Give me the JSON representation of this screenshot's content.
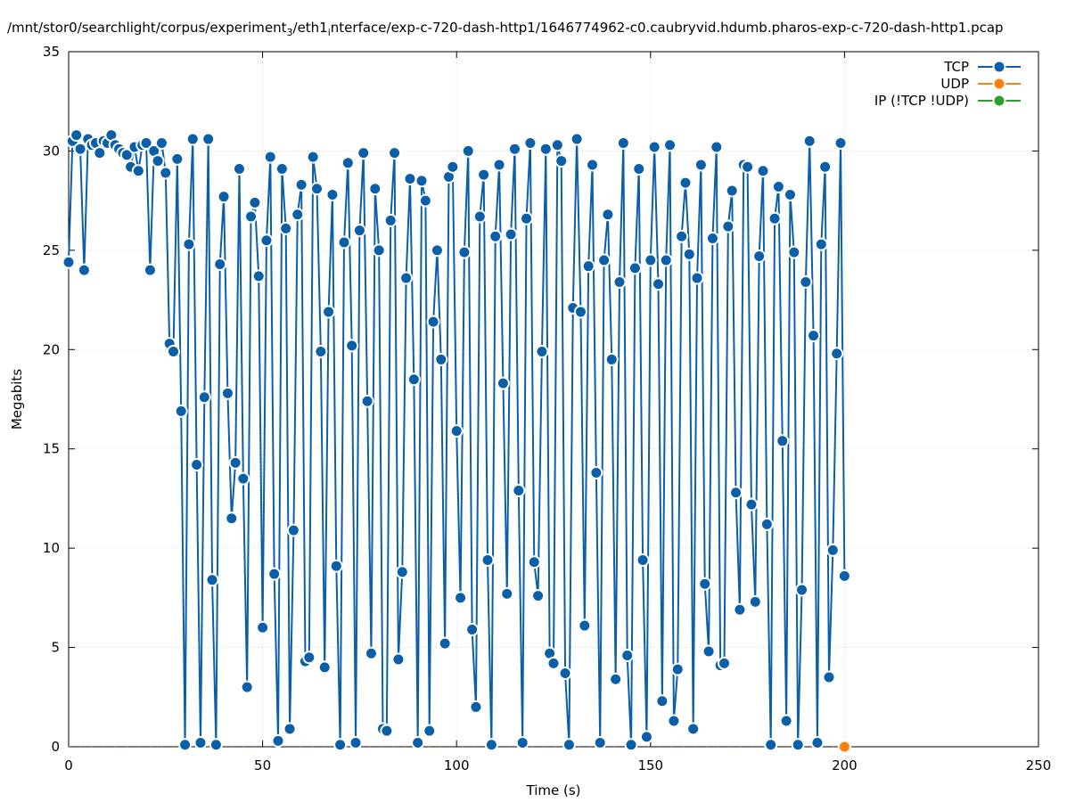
{
  "chart_data": {
    "type": "line",
    "title": "/mnt/stor0/searchlight/corpus/experiment_3/eth1_interface/exp-c-720-dash-http1/1646774962-c0.caubryvid.hdumb.pharos-exp-c-720-dash-http1.pcap",
    "title_parts": {
      "p1": "/mnt/stor0/searchlight/corpus/experiment",
      "sub1": "3",
      "p2": "/eth1",
      "sub2": "i",
      "p3": "nterface/exp-c-720-dash-http1/1646774962-c0.caubryvid.hdumb.pharos-exp-c-720-dash-http1.pcap"
    },
    "xlabel": "Time (s)",
    "ylabel": "Megabits",
    "xlim": [
      0,
      250
    ],
    "ylim": [
      0,
      35
    ],
    "xticks": [
      0,
      50,
      100,
      150,
      200,
      250
    ],
    "yticks": [
      0,
      5,
      10,
      15,
      20,
      25,
      30,
      35
    ],
    "grid": true,
    "legend_position": "top-right",
    "series": [
      {
        "name": "TCP",
        "color": "#0a5fa8",
        "x": [
          0,
          1,
          2,
          3,
          4,
          5,
          6,
          7,
          8,
          9,
          10,
          11,
          12,
          13,
          14,
          15,
          16,
          17,
          18,
          19,
          20,
          21,
          22,
          23,
          24,
          25,
          26,
          27,
          28,
          29,
          30,
          31,
          32,
          33,
          34,
          35,
          36,
          37,
          38,
          39,
          40,
          41,
          42,
          43,
          44,
          45,
          46,
          47,
          48,
          49,
          50,
          51,
          52,
          53,
          54,
          55,
          56,
          57,
          58,
          59,
          60,
          61,
          62,
          63,
          64,
          65,
          66,
          67,
          68,
          69,
          70,
          71,
          72,
          73,
          74,
          75,
          76,
          77,
          78,
          79,
          80,
          81,
          82,
          83,
          84,
          85,
          86,
          87,
          88,
          89,
          90,
          91,
          92,
          93,
          94,
          95,
          96,
          97,
          98,
          99,
          100,
          101,
          102,
          103,
          104,
          105,
          106,
          107,
          108,
          109,
          110,
          111,
          112,
          113,
          114,
          115,
          116,
          117,
          118,
          119,
          120,
          121,
          122,
          123,
          124,
          125,
          126,
          127,
          128,
          129,
          130,
          131,
          132,
          133,
          134,
          135,
          136,
          137,
          138,
          139,
          140,
          141,
          142,
          143,
          144,
          145,
          146,
          147,
          148,
          149,
          150,
          151,
          152,
          153,
          154,
          155,
          156,
          157,
          158,
          159,
          160,
          161,
          162,
          163,
          164,
          165,
          166,
          167,
          168,
          169,
          170,
          171,
          172,
          173,
          174,
          175,
          176,
          177,
          178,
          179,
          180,
          181,
          182,
          183,
          184,
          185,
          186,
          187,
          188,
          189,
          190,
          191,
          192,
          193,
          194,
          195,
          196,
          197,
          198,
          199,
          200
        ],
        "y": [
          24.4,
          30.5,
          30.8,
          30.1,
          24.0,
          30.6,
          30.3,
          30.4,
          29.9,
          30.5,
          30.4,
          30.8,
          30.3,
          30.1,
          29.9,
          29.8,
          29.2,
          30.2,
          29.0,
          30.3,
          30.4,
          24.0,
          30.0,
          29.5,
          30.4,
          28.9,
          20.3,
          19.9,
          29.6,
          16.9,
          0.1,
          25.3,
          30.6,
          14.2,
          0.2,
          17.6,
          30.6,
          8.4,
          0.1,
          24.3,
          27.7,
          17.8,
          11.5,
          14.3,
          29.1,
          13.5,
          3.0,
          26.7,
          27.4,
          23.7,
          6.0,
          25.5,
          29.7,
          8.7,
          0.3,
          29.1,
          26.1,
          0.9,
          10.9,
          26.8,
          28.3,
          4.3,
          4.5,
          29.7,
          28.1,
          19.9,
          4.0,
          21.9,
          27.8,
          9.1,
          0.1,
          25.4,
          29.4,
          20.2,
          0.2,
          26.0,
          29.9,
          17.4,
          4.7,
          28.1,
          25.0,
          0.9,
          0.8,
          26.5,
          29.9,
          4.4,
          8.8,
          23.6,
          28.6,
          18.5,
          0.2,
          28.5,
          27.5,
          0.8,
          21.4,
          25.0,
          19.5,
          5.2,
          28.7,
          29.2,
          15.9,
          7.5,
          24.9,
          30.0,
          5.9,
          2.0,
          26.7,
          28.8,
          9.4,
          0.1,
          25.7,
          29.3,
          18.3,
          7.7,
          25.8,
          30.1,
          12.9,
          0.2,
          26.6,
          30.4,
          9.3,
          7.6,
          19.9,
          30.1,
          4.7,
          4.2,
          30.3,
          29.5,
          3.7,
          0.1,
          22.1,
          30.6,
          21.9,
          6.1,
          24.2,
          29.3,
          13.8,
          0.2,
          24.5,
          26.8,
          19.5,
          3.4,
          23.4,
          30.4,
          4.6,
          0.1,
          24.1,
          29.1,
          9.4,
          0.5,
          24.5,
          30.2,
          23.3,
          2.3,
          24.5,
          30.3,
          1.3,
          3.9,
          25.7,
          28.4,
          24.8,
          0.9,
          23.6,
          29.3,
          8.2,
          4.8,
          25.6,
          30.2,
          4.1,
          4.2,
          26.2,
          28.0,
          12.8,
          6.9,
          29.3,
          29.2,
          12.2,
          7.3,
          24.7,
          29.0,
          11.2,
          0.1,
          26.6,
          28.2,
          15.4,
          1.3,
          27.8,
          24.9,
          0.1,
          7.9,
          23.4,
          30.5,
          20.7,
          0.2,
          25.3,
          29.2,
          3.5,
          9.9,
          19.8,
          30.4,
          8.6
        ]
      },
      {
        "name": "UDP",
        "color": "#ff7f0e",
        "x": [
          0,
          200
        ],
        "y": [
          0,
          0
        ]
      },
      {
        "name": "IP (!TCP  !UDP)",
        "color": "#2ca02c",
        "x": [
          0,
          200
        ],
        "y": [
          0,
          0
        ]
      }
    ]
  }
}
